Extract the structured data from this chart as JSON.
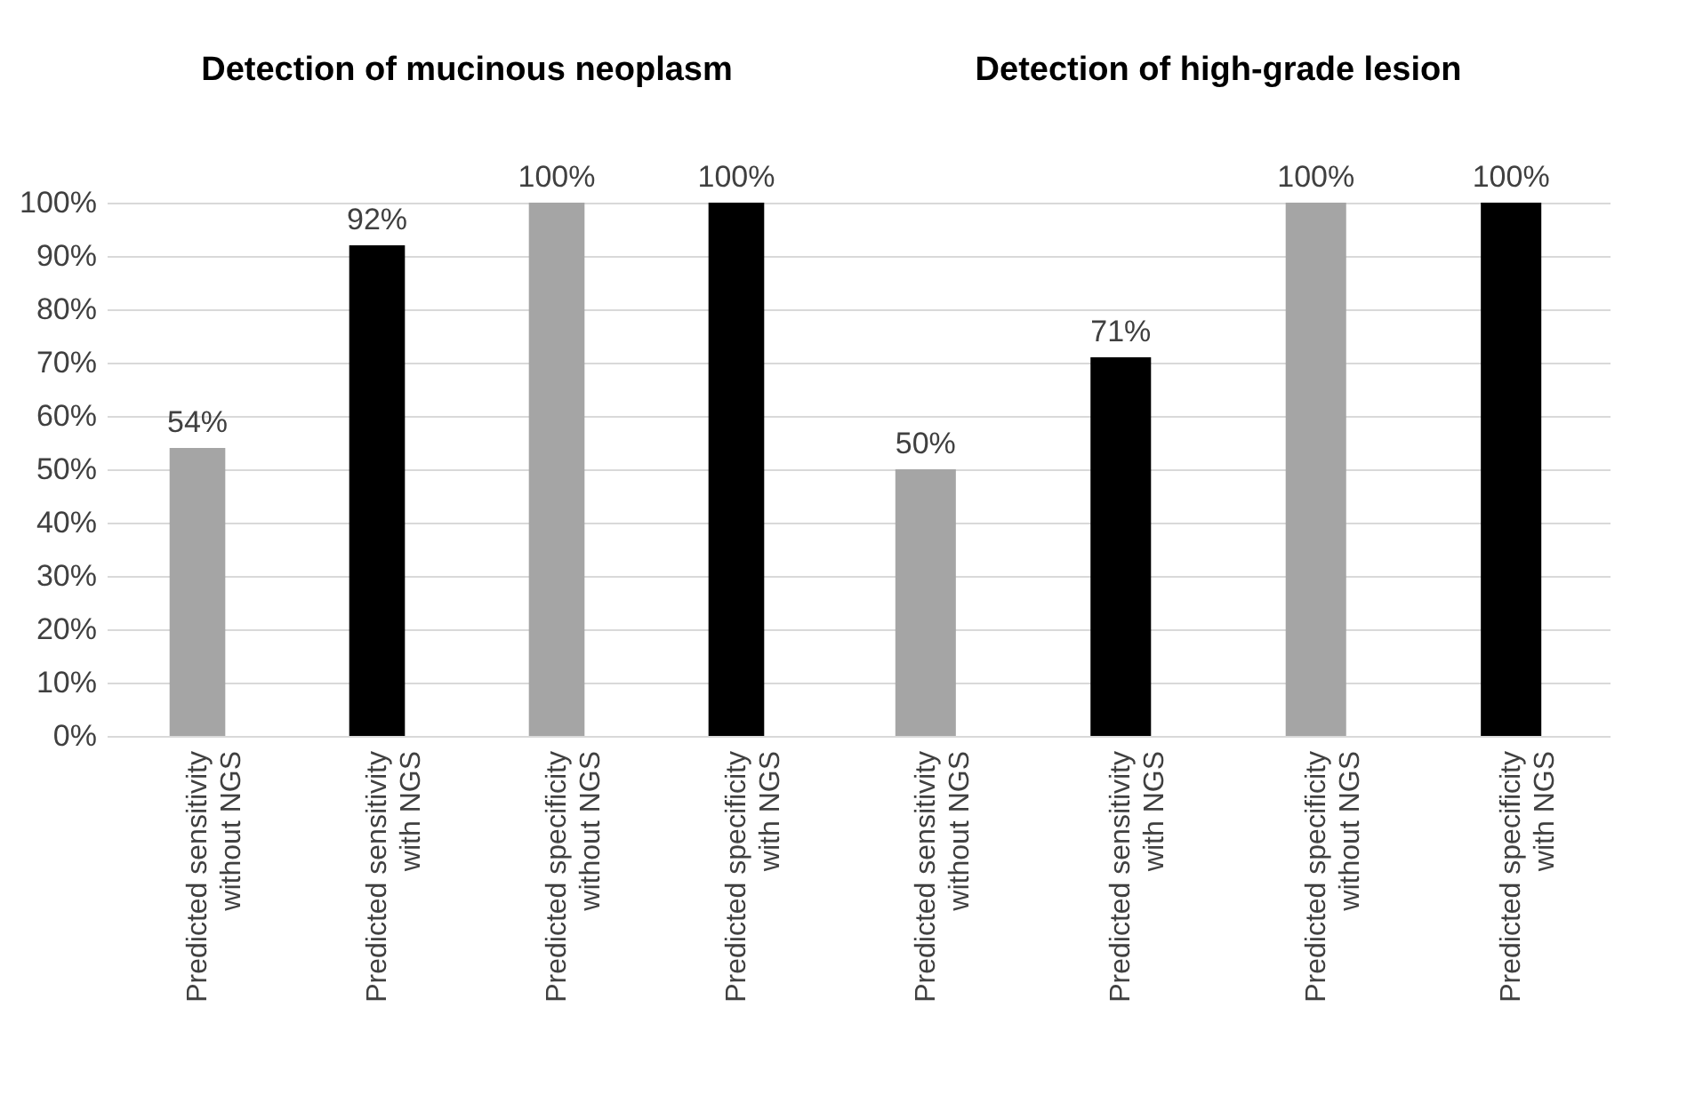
{
  "chart_data": [
    {
      "type": "bar",
      "title": "Detection of mucinous neoplasm",
      "categories": [
        "Predicted sensitivity\nwithout NGS",
        "Predicted sensitivity\nwith NGS",
        "Predicted specificity\nwithout NGS",
        "Predicted specificity\nwith NGS"
      ],
      "values": [
        54,
        92,
        100,
        100
      ],
      "value_labels": [
        "54%",
        "92%",
        "100%",
        "100%"
      ],
      "colors": [
        "#a5a5a5",
        "#000000",
        "#a5a5a5",
        "#000000"
      ],
      "ylim": [
        0,
        100
      ],
      "yticks": [
        {
          "value": 0,
          "label": "0%"
        },
        {
          "value": 10,
          "label": "10%"
        },
        {
          "value": 20,
          "label": "20%"
        },
        {
          "value": 30,
          "label": "30%"
        },
        {
          "value": 40,
          "label": "40%"
        },
        {
          "value": 50,
          "label": "50%"
        },
        {
          "value": 60,
          "label": "60%"
        },
        {
          "value": 70,
          "label": "70%"
        },
        {
          "value": 80,
          "label": "80%"
        },
        {
          "value": 90,
          "label": "90%"
        },
        {
          "value": 100,
          "label": "100%"
        }
      ],
      "grid": "y"
    },
    {
      "type": "bar",
      "title": "Detection of high-grade lesion",
      "categories": [
        "Predicted  sensitivity\nwithout NGS",
        "Predicted sensitivity\nwith NGS",
        "Predicted specificity\nwithout NGS",
        "Predicted specificity\nwith NGS"
      ],
      "values": [
        50,
        71,
        100,
        100
      ],
      "value_labels": [
        "50%",
        "71%",
        "100%",
        "100%"
      ],
      "colors": [
        "#a5a5a5",
        "#000000",
        "#a5a5a5",
        "#000000"
      ],
      "ylim": [
        0,
        100
      ],
      "yticks": [
        {
          "value": 0,
          "label": null
        },
        {
          "value": 10,
          "label": null
        },
        {
          "value": 20,
          "label": null
        },
        {
          "value": 30,
          "label": null
        },
        {
          "value": 40,
          "label": null
        },
        {
          "value": 50,
          "label": null
        },
        {
          "value": 60,
          "label": null
        },
        {
          "value": 70,
          "label": null
        },
        {
          "value": 80,
          "label": null
        },
        {
          "value": 90,
          "label": null
        },
        {
          "value": 100,
          "label": null
        }
      ],
      "grid": "y",
      "tick_labels": "x"
    }
  ]
}
